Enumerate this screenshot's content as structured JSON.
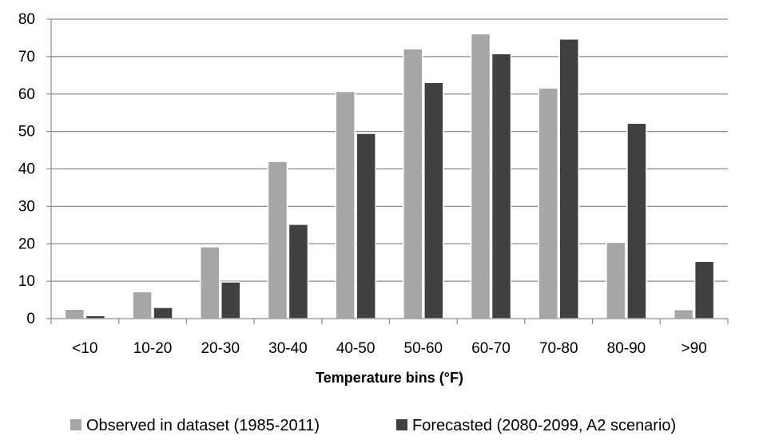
{
  "chart_data": {
    "type": "bar",
    "title": "",
    "xlabel": "Temperature bins (°F)",
    "ylabel": "",
    "ylim": [
      0,
      80
    ],
    "yticks": [
      0,
      10,
      20,
      30,
      40,
      50,
      60,
      70,
      80
    ],
    "grid": true,
    "legend_position": "bottom",
    "categories": [
      "<10",
      "10-20",
      "20-30",
      "30-40",
      "40-50",
      "50-60",
      "60-70",
      "70-80",
      "80-90",
      ">90"
    ],
    "series": [
      {
        "name": "Observed in dataset (1985-2011)",
        "color": "#a6a6a6",
        "values": [
          2.5,
          7.2,
          19.2,
          42,
          60.7,
          72.1,
          76.1,
          61.6,
          20.4,
          2.4
        ]
      },
      {
        "name": "Forecasted (2080-2099, A2 scenario)",
        "color": "#404040",
        "values": [
          0.8,
          3.0,
          9.8,
          25.2,
          49.5,
          63.1,
          70.8,
          74.7,
          52.2,
          15.3
        ]
      }
    ]
  }
}
